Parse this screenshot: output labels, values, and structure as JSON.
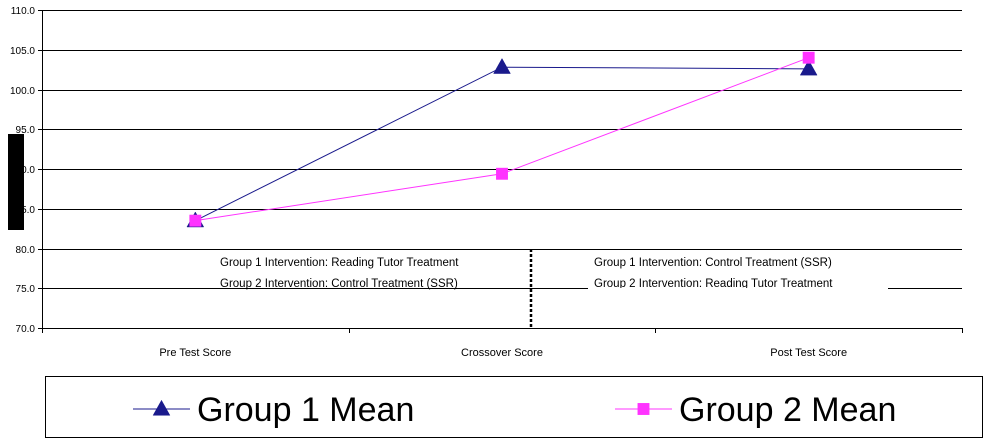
{
  "chart_data": {
    "type": "line",
    "categories": [
      "Pre Test Score",
      "Crossover Score",
      "Post Test Score"
    ],
    "series": [
      {
        "name": "Group 1 Mean",
        "values": [
          83.5,
          102.8,
          102.6
        ],
        "color": "#1a1a8c",
        "marker": "triangle"
      },
      {
        "name": "Group 2 Mean",
        "values": [
          83.5,
          89.4,
          104.0
        ],
        "color": "#ff33ff",
        "marker": "square"
      }
    ],
    "ylim": [
      70.0,
      110.0
    ],
    "yticks": [
      "70.0",
      "75.0",
      "80.0",
      "85.0",
      "90.0",
      "95.0",
      "100.0",
      "105.0",
      "110.0"
    ],
    "grid": true,
    "legend": "bottom",
    "annotations": {
      "left": [
        "Group 1  Intervention:  Reading Tutor Treatment",
        "Group 2  Intervention:  Control Treatment (SSR)"
      ],
      "right": [
        "Group 1  Intervention:  Control Treatment (SSR)",
        "Group 2  Intervention:  Reading Tutor Treatment"
      ]
    }
  }
}
